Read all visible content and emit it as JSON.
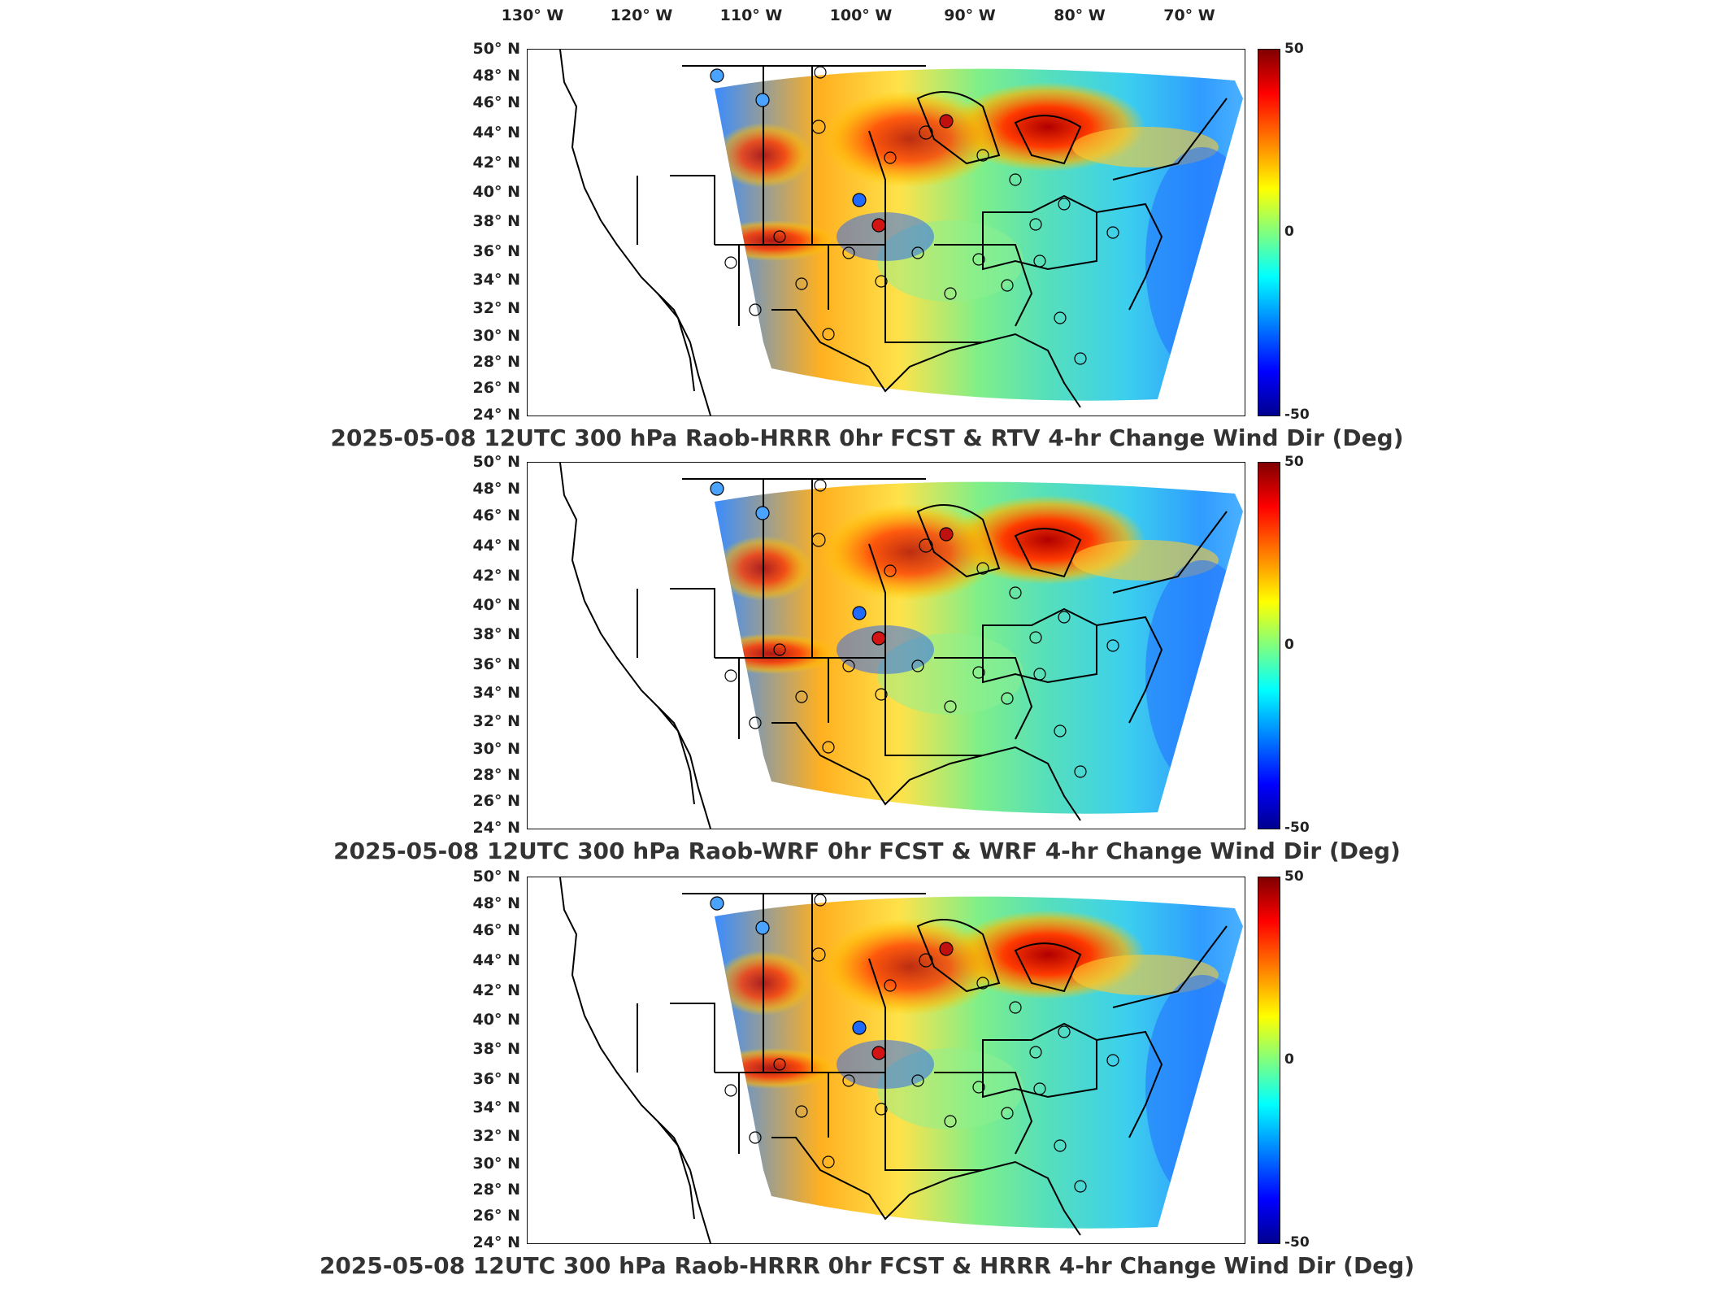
{
  "longitude_labels": [
    "130° W",
    "120° W",
    "110° W",
    "100° W",
    "90° W",
    "80° W",
    "70° W"
  ],
  "latitude_labels": [
    "50° N",
    "48° N",
    "46° N",
    "44° N",
    "42° N",
    "40° N",
    "38° N",
    "36° N",
    "34° N",
    "32° N",
    "30° N",
    "28° N",
    "26° N",
    "24° N"
  ],
  "colorbar": {
    "max_label": "50",
    "mid_label": "0",
    "min_label": "-50",
    "range": [
      -50,
      50
    ]
  },
  "colors": {
    "high": "#800000",
    "mid": "#7fff7f",
    "low": "#00008f",
    "border": "#111111"
  },
  "panels": [
    {
      "title": "2025-05-08 12UTC 300 hPa Raob-HRRR 0hr FCST & RTV 4-hr Change Wind Dir (Deg)"
    },
    {
      "title": "2025-05-08 12UTC 300 hPa Raob-WRF 0hr FCST & WRF 4-hr Change Wind Dir (Deg)"
    },
    {
      "title": "2025-05-08 12UTC 300 hPa Raob-HRRR 0hr FCST & HRRR 4-hr Change Wind Dir (Deg)"
    }
  ]
}
